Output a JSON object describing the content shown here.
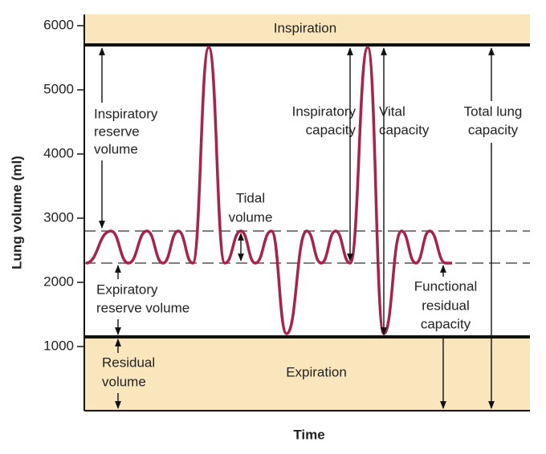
{
  "axis": {
    "y_label": "Lung volume (ml)",
    "x_label": "Time",
    "ylim": [
      0,
      6175
    ],
    "yticks": [
      1000,
      2000,
      3000,
      4000,
      5000,
      6000
    ]
  },
  "levels": {
    "total_lung_capacity": 5700,
    "tidal_top": 2800,
    "tidal_bottom": 2300,
    "residual": 1150
  },
  "bands": {
    "top": "Inspiration",
    "bottom": "Expiration"
  },
  "annotations": {
    "inspiratory_reserve_volume": [
      "Inspiratory",
      "reserve",
      "volume"
    ],
    "tidal_volume": [
      "Tidal",
      "volume"
    ],
    "expiratory_reserve_volume": [
      "Expiratory",
      "reserve volume"
    ],
    "residual_volume": [
      "Residual",
      "volume"
    ],
    "inspiratory_capacity": [
      "Inspiratory",
      "capacity"
    ],
    "vital_capacity": [
      "Vital",
      "capacity"
    ],
    "total_lung_capacity": [
      "Total lung",
      "capacity"
    ],
    "functional_residual_capacity": [
      "Functional",
      "residual",
      "capacity"
    ]
  }
}
